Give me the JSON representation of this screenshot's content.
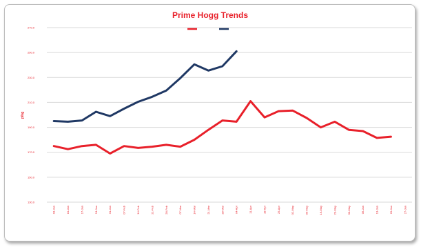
{
  "chart_data": {
    "type": "line",
    "title": "Prime Hogg Trends",
    "xlabel": "",
    "ylabel": "p/kg",
    "ylim": [
      130.0,
      270.0
    ],
    "yticks": [
      "130.0",
      "150.0",
      "170.0",
      "190.0",
      "210.0",
      "230.0",
      "250.0",
      "270.0"
    ],
    "grid": true,
    "legend": "top-center",
    "x": [
      "03-Jan",
      "10-Jan",
      "17-Jan",
      "24-Jan",
      "31-Jan",
      "07-Feb",
      "14-Feb",
      "21-Feb",
      "28-Feb",
      "07-Mar",
      "14-Mar",
      "21-Mar",
      "28-Mar",
      "04-Apr",
      "11-Apr",
      "18-Apr",
      "25-Apr",
      "02-May",
      "09-May",
      "16-May",
      "23-May",
      "30-May",
      "06-Jun",
      "13-Jun",
      "20-Jun",
      "27-Jun"
    ],
    "series": [
      {
        "name": "",
        "color": "#e8202a",
        "values": [
          175.0,
          172.5,
          175.0,
          176.0,
          169.0,
          175.0,
          173.5,
          174.5,
          176.0,
          174.5,
          180.0,
          188.0,
          195.5,
          194.5,
          211.0,
          198.0,
          203.0,
          203.5,
          197.5,
          190.0,
          194.5,
          188.0,
          187.0,
          181.5,
          182.5,
          null
        ]
      },
      {
        "name": "",
        "color": "#1f3864",
        "values": [
          195.0,
          194.5,
          195.5,
          202.5,
          199.0,
          205.0,
          210.5,
          214.5,
          219.5,
          229.5,
          240.5,
          235.5,
          239.0,
          251.0,
          null,
          null,
          null,
          null,
          null,
          null,
          null,
          null,
          null,
          null,
          null,
          null
        ]
      }
    ]
  }
}
